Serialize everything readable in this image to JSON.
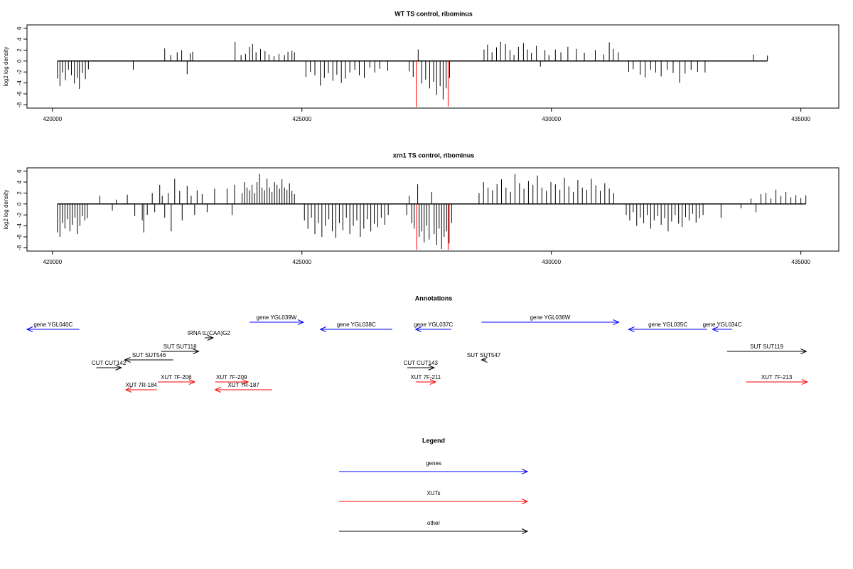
{
  "chart_data": [
    {
      "type": "bar",
      "title": "WT TS control, ribominus",
      "ylabel": "log2 log density",
      "xlim": [
        419490,
        435760
      ],
      "xticks": [
        420000,
        425000,
        430000,
        435000
      ],
      "ylim": [
        -8.6,
        6.6
      ],
      "yticks": [
        6,
        4,
        2,
        0,
        -2,
        -4,
        -6,
        -8
      ],
      "series": [
        {
          "color": "#000000",
          "x": [
            420100,
            420150,
            420200,
            420260,
            420320,
            420380,
            420440,
            420500,
            420540,
            420600,
            420660,
            420720,
            421620,
            422250,
            422370,
            422500,
            422590,
            422700,
            422760,
            422810,
            423660,
            423780,
            423870,
            423950,
            424010,
            424080,
            424170,
            424260,
            424340,
            424440,
            424540,
            424650,
            424720,
            424800,
            424850,
            425080,
            425170,
            425260,
            425370,
            425450,
            425530,
            425620,
            425700,
            425790,
            425870,
            425960,
            426060,
            426150,
            426250,
            426360,
            426460,
            426560,
            426720,
            427150,
            427230,
            427330,
            427400,
            427480,
            427560,
            427640,
            427700,
            427770,
            427830,
            427890,
            427960,
            428650,
            428720,
            428810,
            428900,
            428980,
            429080,
            429170,
            429250,
            429340,
            429440,
            429520,
            429600,
            429700,
            429780,
            429870,
            429950,
            430080,
            430190,
            430330,
            430500,
            430660,
            430880,
            431050,
            431160,
            431240,
            431340,
            431550,
            431640,
            431780,
            431880,
            431990,
            432090,
            432200,
            432320,
            432440,
            432570,
            432680,
            432800,
            432930,
            433080,
            434050,
            434330
          ],
          "values": [
            -3.2,
            -4.6,
            -2.1,
            -3.5,
            -1.6,
            -2.6,
            -4.1,
            -3.1,
            -5.1,
            -2.2,
            -3.3,
            -1.5,
            -1.6,
            2.3,
            1.1,
            1.6,
            2.0,
            -2.4,
            1.4,
            1.7,
            3.5,
            1.1,
            1.3,
            2.6,
            3.1,
            1.6,
            2.2,
            1.8,
            1.2,
            0.9,
            1.3,
            1.1,
            1.7,
            1.9,
            1.6,
            -2.9,
            -2.0,
            -2.6,
            -4.5,
            -3.1,
            -2.2,
            -3.6,
            -2.5,
            -4.0,
            -3.2,
            -2.1,
            -1.6,
            -2.6,
            -3.1,
            -1.2,
            -2.1,
            -1.4,
            -1.8,
            -1.9,
            -2.9,
            2.1,
            -4.1,
            -3.4,
            -5.0,
            -3.8,
            -6.2,
            -4.6,
            -7.0,
            -5.0,
            -3.1,
            2.1,
            3.0,
            1.6,
            2.5,
            3.5,
            3.1,
            2.0,
            1.1,
            2.6,
            3.3,
            2.1,
            1.5,
            2.8,
            -1.0,
            2.0,
            1.1,
            2.1,
            1.6,
            2.6,
            2.2,
            1.5,
            2.0,
            1.2,
            3.4,
            2.2,
            1.6,
            -2.0,
            -1.5,
            -2.5,
            -3.0,
            -1.6,
            -2.1,
            -2.8,
            -1.6,
            -2.2,
            -4.0,
            -2.3,
            -1.6,
            -2.0,
            -2.1,
            1.2,
            1.0
          ]
        },
        {
          "color": "#ff0000",
          "x": [
            427290,
            427930
          ],
          "values": [
            -8.4,
            -8.3
          ]
        }
      ]
    },
    {
      "type": "bar",
      "title": "xrn1 TS control, ribominus",
      "ylabel": "log2 log density",
      "xlim": [
        419490,
        435760
      ],
      "xticks": [
        420000,
        425000,
        430000,
        435000
      ],
      "ylim": [
        -8.6,
        6.6
      ],
      "yticks": [
        6,
        4,
        2,
        0,
        -2,
        -4,
        -6,
        -8
      ],
      "series": [
        {
          "color": "#000000",
          "x": [
            420100,
            420150,
            420200,
            420250,
            420300,
            420350,
            420400,
            420450,
            420500,
            420550,
            420600,
            420650,
            420700,
            420950,
            421200,
            421280,
            421500,
            421650,
            421800,
            421830,
            421900,
            422000,
            422050,
            422150,
            422200,
            422250,
            422320,
            422380,
            422450,
            422550,
            422600,
            422700,
            422780,
            422850,
            422900,
            423000,
            423100,
            423250,
            423500,
            423600,
            423650,
            423800,
            423850,
            423900,
            423950,
            424000,
            424050,
            424100,
            424150,
            424200,
            424250,
            424300,
            424350,
            424400,
            424450,
            424500,
            424550,
            424600,
            424650,
            424700,
            424750,
            424800,
            424850,
            425050,
            425120,
            425190,
            425260,
            425330,
            425400,
            425470,
            425540,
            425610,
            425680,
            425750,
            425820,
            425890,
            425960,
            426030,
            426100,
            426170,
            426240,
            426310,
            426380,
            426450,
            426520,
            426590,
            426660,
            426730,
            427100,
            427150,
            427200,
            427250,
            427320,
            427350,
            427400,
            427450,
            427500,
            427550,
            427600,
            427650,
            427700,
            427750,
            427800,
            427850,
            427900,
            427950,
            428000,
            428550,
            428640,
            428730,
            428820,
            428910,
            429000,
            429090,
            429180,
            429270,
            429360,
            429450,
            429540,
            429630,
            429720,
            429810,
            429900,
            429990,
            430080,
            430170,
            430260,
            430350,
            430440,
            430530,
            430620,
            430710,
            430800,
            430890,
            430980,
            431070,
            431160,
            431250,
            431500,
            431570,
            431640,
            431710,
            431780,
            431850,
            431920,
            431990,
            432060,
            432130,
            432200,
            432270,
            432340,
            432410,
            432480,
            432550,
            432620,
            432690,
            432760,
            432830,
            432900,
            432970,
            433040,
            433400,
            433800,
            434000,
            434100,
            434200,
            434300,
            434400,
            434500,
            434600,
            434700,
            434800,
            434900,
            435000,
            435100
          ],
          "values": [
            -5.2,
            -6,
            -3.5,
            -4.5,
            -2.8,
            -5,
            -3.8,
            -2.5,
            -5.5,
            -4,
            -2.2,
            -3,
            -2.6,
            1.5,
            -1.2,
            0.8,
            1.7,
            -2.2,
            -3,
            -5.2,
            -2,
            2,
            -1.5,
            3.5,
            1.5,
            -2.5,
            2,
            -5,
            4.6,
            2.4,
            -3,
            3.3,
            1.5,
            -2,
            2.5,
            1.8,
            -1.5,
            2.8,
            2.8,
            -2,
            3.5,
            2,
            4,
            3,
            2.5,
            3.5,
            2,
            4,
            5.5,
            3,
            2.5,
            4.6,
            3,
            2.2,
            4,
            3.5,
            2.8,
            4.5,
            3,
            2.6,
            3.8,
            2.4,
            1.8,
            -3,
            -4.5,
            -2.5,
            -5.5,
            -3.5,
            -6,
            -4,
            -2.8,
            -5,
            -6.2,
            -3.5,
            -4.8,
            -2.5,
            -5.5,
            -4,
            -3,
            -6,
            -4.5,
            -2.8,
            -5,
            -3.6,
            -4.2,
            -2.5,
            -3.8,
            -2,
            -2,
            1.5,
            -3.5,
            -4.5,
            3.6,
            -6,
            -5,
            -7,
            -4,
            -6.5,
            2.2,
            -5.5,
            -7.5,
            -4.5,
            -8.2,
            -6,
            -5,
            -7.2,
            -3.5,
            2,
            4,
            3,
            2.5,
            3.6,
            4.5,
            3,
            2.2,
            5.5,
            3.8,
            2.8,
            4.2,
            3.5,
            5.2,
            3,
            2.4,
            4,
            3.6,
            2.6,
            4.8,
            3.2,
            2.2,
            4.4,
            3,
            2.6,
            4.6,
            3.4,
            2.4,
            3.8,
            2.8,
            2,
            -2,
            -3,
            -1.5,
            -4,
            -2.5,
            -3.5,
            -2,
            -4.5,
            -3,
            -2.2,
            -3.8,
            -2.6,
            -5,
            -3.2,
            -2,
            -3.6,
            -4.2,
            -2.4,
            -3,
            -1.8,
            -3.4,
            -2.6,
            -2,
            -2.5,
            -0.8,
            1,
            -1.5,
            1.8,
            2,
            1,
            2.6,
            1.5,
            2.2,
            1.2,
            1.6,
            1.1,
            1.6
          ]
        },
        {
          "color": "#ff0000",
          "x": [
            427300,
            427930
          ],
          "values": [
            -8.4,
            -8.4
          ]
        }
      ]
    }
  ],
  "annotations": {
    "title": "Annotations",
    "features": [
      {
        "label": "gene YGL040C",
        "color": "#0000ff",
        "start": 419490,
        "end": 420540,
        "direction": "left"
      },
      {
        "label": "tRNA tL(CAA)G2",
        "color": "#000000",
        "start": 423050,
        "end": 423220,
        "direction": "right"
      },
      {
        "label": "gene YGL039W",
        "color": "#0000ff",
        "start": 423950,
        "end": 425030,
        "direction": "right"
      },
      {
        "label": "SUT SUT118",
        "color": "#000000",
        "start": 422180,
        "end": 422930,
        "direction": "right"
      },
      {
        "label": "SUT SUT546",
        "color": "#000000",
        "start": 421450,
        "end": 422420,
        "direction": "left"
      },
      {
        "label": "CUT CUT142",
        "color": "#000000",
        "start": 420880,
        "end": 421380,
        "direction": "right"
      },
      {
        "label": "XUT 7F-206",
        "color": "#ff0000",
        "start": 422110,
        "end": 422850,
        "direction": "right"
      },
      {
        "label": "XUT 7R-184",
        "color": "#ff0000",
        "start": 421470,
        "end": 422090,
        "direction": "left"
      },
      {
        "label": "XUT 7F-209",
        "color": "#ff0000",
        "start": 423260,
        "end": 423920,
        "direction": "right"
      },
      {
        "label": "XUT 7R-187",
        "color": "#ff0000",
        "start": 423260,
        "end": 424400,
        "direction": "left"
      },
      {
        "label": "gene YGL038C",
        "color": "#0000ff",
        "start": 425370,
        "end": 426810,
        "direction": "left"
      },
      {
        "label": "gene YGL037C",
        "color": "#0000ff",
        "start": 427280,
        "end": 427990,
        "direction": "left"
      },
      {
        "label": "CUT CUT143",
        "color": "#000000",
        "start": 427110,
        "end": 427650,
        "direction": "right"
      },
      {
        "label": "XUT 7F-211",
        "color": "#ff0000",
        "start": 427280,
        "end": 427680,
        "direction": "right"
      },
      {
        "label": "SUT SUT547",
        "color": "#000000",
        "start": 428600,
        "end": 428690,
        "direction": "left"
      },
      {
        "label": "gene YGL036W",
        "color": "#0000ff",
        "start": 428600,
        "end": 431350,
        "direction": "right"
      },
      {
        "label": "gene YGL035C",
        "color": "#0000ff",
        "start": 431550,
        "end": 433120,
        "direction": "left"
      },
      {
        "label": "gene YGL034C",
        "color": "#0000ff",
        "start": 433230,
        "end": 433620,
        "direction": "left"
      },
      {
        "label": "SUT SUT119",
        "color": "#000000",
        "start": 433520,
        "end": 435110,
        "direction": "right"
      },
      {
        "label": "XUT 7F-213",
        "color": "#ff0000",
        "start": 433900,
        "end": 435130,
        "direction": "right"
      }
    ]
  },
  "legend": {
    "title": "Legend",
    "items": [
      {
        "label": "genes",
        "color": "#0000ff"
      },
      {
        "label": "XUTs",
        "color": "#ff0000"
      },
      {
        "label": "other",
        "color": "#000000"
      }
    ]
  }
}
